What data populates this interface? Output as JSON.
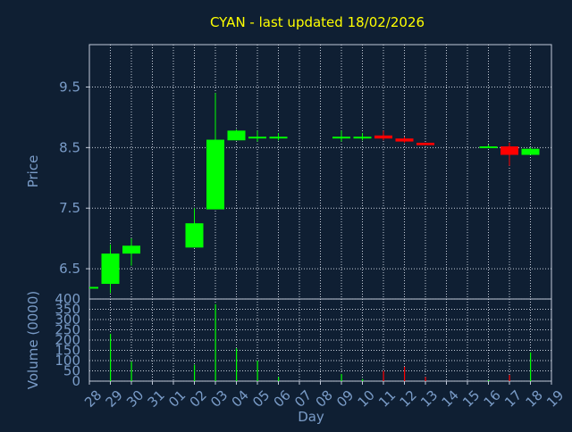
{
  "colors": {
    "background": "#0f1f33",
    "title": "#ffff00",
    "axis_text": "#7a9cc8",
    "frame": "#c0c8d8",
    "grid": "#c8d0dc",
    "up": "#00ff00",
    "down": "#ff0000"
  },
  "chart_data": [
    {
      "type": "candlestick",
      "title": "CYAN - last updated 18/02/2026",
      "ylabel": "Price",
      "ylim": [
        6.0,
        10.2
      ],
      "y_ticks": [
        "6.5",
        "7.5",
        "8.5",
        "9.5"
      ],
      "grid": true,
      "x": [
        "28",
        "29",
        "30",
        "31",
        "01",
        "02",
        "03",
        "04",
        "05",
        "06",
        "07",
        "08",
        "09",
        "10",
        "11",
        "12",
        "13",
        "14",
        "15",
        "16",
        "17",
        "18",
        "19"
      ],
      "candles": [
        {
          "x": "28",
          "open": 6.2,
          "close": 6.2,
          "high": 6.2,
          "low": 6.2
        },
        {
          "x": "29",
          "open": 6.25,
          "close": 6.75,
          "high": 6.9,
          "low": 6.1
        },
        {
          "x": "30",
          "open": 6.75,
          "close": 6.88,
          "high": 7.0,
          "low": 6.55
        },
        {
          "x": "02",
          "open": 6.85,
          "close": 7.25,
          "high": 7.5,
          "low": 6.85
        },
        {
          "x": "03",
          "open": 7.48,
          "close": 8.63,
          "high": 9.4,
          "low": 7.48
        },
        {
          "x": "04",
          "open": 8.62,
          "close": 8.78,
          "high": 8.8,
          "low": 8.62
        },
        {
          "x": "05",
          "open": 8.68,
          "close": 8.68,
          "high": 8.78,
          "low": 8.6
        },
        {
          "x": "06",
          "open": 8.68,
          "close": 8.68,
          "high": 8.74,
          "low": 8.62
        },
        {
          "x": "09",
          "open": 8.68,
          "close": 8.68,
          "high": 8.78,
          "low": 8.6
        },
        {
          "x": "10",
          "open": 8.68,
          "close": 8.68,
          "high": 8.74,
          "low": 8.62
        },
        {
          "x": "11",
          "open": 8.7,
          "close": 8.65,
          "high": 8.78,
          "low": 8.62
        },
        {
          "x": "12",
          "open": 8.65,
          "close": 8.6,
          "high": 8.68,
          "low": 8.58
        },
        {
          "x": "13",
          "open": 8.58,
          "close": 8.54,
          "high": 8.58,
          "low": 8.54
        },
        {
          "x": "16",
          "open": 8.52,
          "close": 8.52,
          "high": 8.55,
          "low": 8.5
        },
        {
          "x": "17",
          "open": 8.52,
          "close": 8.38,
          "high": 8.58,
          "low": 8.2
        },
        {
          "x": "18",
          "open": 8.38,
          "close": 8.48,
          "high": 8.5,
          "low": 8.38
        }
      ]
    },
    {
      "type": "bar",
      "ylabel": "Volume (0000)",
      "xlabel": "Day",
      "ylim": [
        0,
        400
      ],
      "y_ticks": [
        "0",
        "50",
        "100",
        "150",
        "200",
        "250",
        "300",
        "350",
        "400"
      ],
      "grid": true,
      "volumes": [
        {
          "x": "29",
          "value": 230,
          "dir": "up"
        },
        {
          "x": "30",
          "value": 95,
          "dir": "up"
        },
        {
          "x": "02",
          "value": 80,
          "dir": "up"
        },
        {
          "x": "03",
          "value": 375,
          "dir": "up"
        },
        {
          "x": "04",
          "value": 160,
          "dir": "up"
        },
        {
          "x": "05",
          "value": 100,
          "dir": "up"
        },
        {
          "x": "06",
          "value": 20,
          "dir": "up"
        },
        {
          "x": "09",
          "value": 35,
          "dir": "up"
        },
        {
          "x": "10",
          "value": 10,
          "dir": "up"
        },
        {
          "x": "11",
          "value": 50,
          "dir": "down"
        },
        {
          "x": "12",
          "value": 70,
          "dir": "down"
        },
        {
          "x": "13",
          "value": 20,
          "dir": "down"
        },
        {
          "x": "16",
          "value": 5,
          "dir": "up"
        },
        {
          "x": "17",
          "value": 30,
          "dir": "down"
        },
        {
          "x": "18",
          "value": 140,
          "dir": "up"
        }
      ]
    }
  ]
}
